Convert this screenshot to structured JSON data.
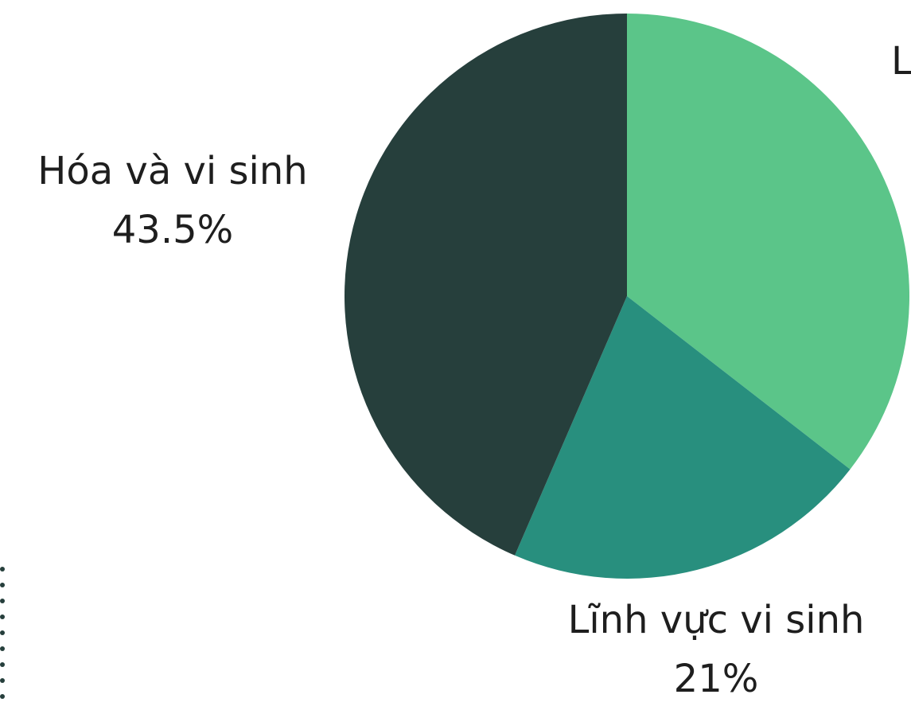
{
  "chart_data": {
    "type": "pie",
    "categories": [
      "L",
      "Lĩnh vực vi sinh",
      "Hóa và vi sinh"
    ],
    "values": [
      35.5,
      21,
      43.5
    ],
    "value_labels": [
      null,
      "21%",
      "43.5%"
    ],
    "colors": [
      "#5bc589",
      "#288f7e",
      "#263f3c"
    ]
  }
}
